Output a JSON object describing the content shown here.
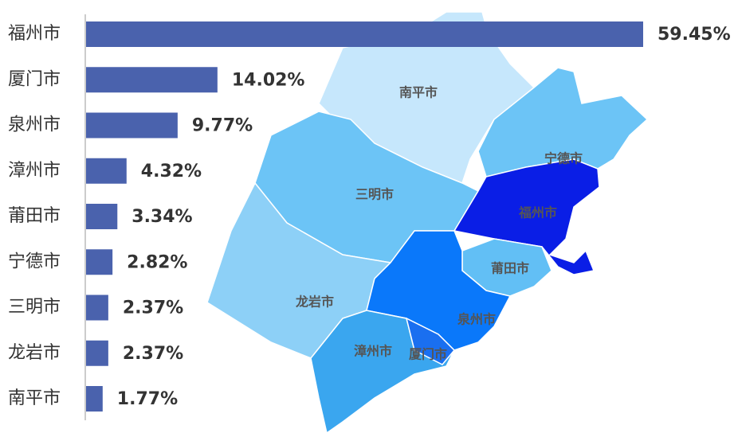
{
  "chart_data": {
    "type": "bar",
    "orientation": "horizontal",
    "color": "#4a62ad",
    "categories": [
      "福州市",
      "厦门市",
      "泉州市",
      "漳州市",
      "莆田市",
      "宁德市",
      "三明市",
      "龙岩市",
      "南平市"
    ],
    "values": [
      59.45,
      14.02,
      9.77,
      4.32,
      3.34,
      2.82,
      2.37,
      2.37,
      1.77
    ],
    "value_labels": [
      "59.45%",
      "14.02%",
      "9.77%",
      "4.32%",
      "3.34%",
      "2.82%",
      "2.37%",
      "2.37%",
      "1.77%"
    ]
  },
  "map": {
    "regions": [
      {
        "name": "南平市",
        "color": "#c6e7fc"
      },
      {
        "name": "宁德市",
        "color": "#6cc4f6"
      },
      {
        "name": "三明市",
        "color": "#6cc4f6"
      },
      {
        "name": "龙岩市",
        "color": "#8dd0f7"
      },
      {
        "name": "福州市",
        "color": "#0a1ee6"
      },
      {
        "name": "莆田市",
        "color": "#62bff5"
      },
      {
        "name": "泉州市",
        "color": "#0a78fa"
      },
      {
        "name": "漳州市",
        "color": "#3aa6ef"
      },
      {
        "name": "厦门市",
        "color": "#1a6ff0"
      }
    ]
  }
}
